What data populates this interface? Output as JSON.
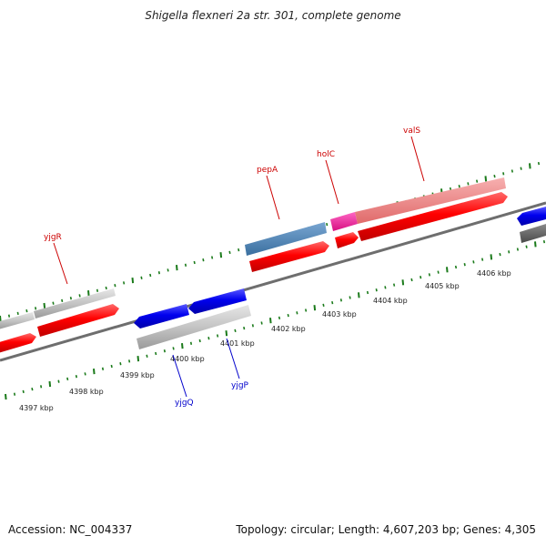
{
  "title": "Shigella flexneri 2a str. 301, complete genome",
  "footer": {
    "accession": "Accession: NC_004337",
    "summary": "Topology: circular; Length: 4,607,203 bp; Genes: 4,305"
  },
  "colors": {
    "backbone": "#808080",
    "tick": "#1a7a1a",
    "forward_cds": "#ff0000",
    "reverse_cds": "#0000ee",
    "gene_grey": "#c0c0c0",
    "gene_dark": "#606060",
    "gene_blue": "#4682b4",
    "gene_pink": "#ff1493",
    "gene_salmon": "#f08080",
    "label_forward": "#cc0000",
    "label_reverse": "#0000cc"
  },
  "scale": {
    "tick_labels": [
      "4397 kbp",
      "4398 kbp",
      "4399 kbp",
      "4400 kbp",
      "4401 kbp",
      "4402 kbp",
      "4403 kbp",
      "4404 kbp",
      "4405 kbp",
      "4406 kbp"
    ]
  },
  "genes": [
    {
      "name": "yjgR",
      "strand": "forward"
    },
    {
      "name": "pepA",
      "strand": "forward"
    },
    {
      "name": "holC",
      "strand": "forward"
    },
    {
      "name": "valS",
      "strand": "forward"
    },
    {
      "name": "yjgQ",
      "strand": "reverse"
    },
    {
      "name": "yjgP",
      "strand": "reverse"
    }
  ]
}
